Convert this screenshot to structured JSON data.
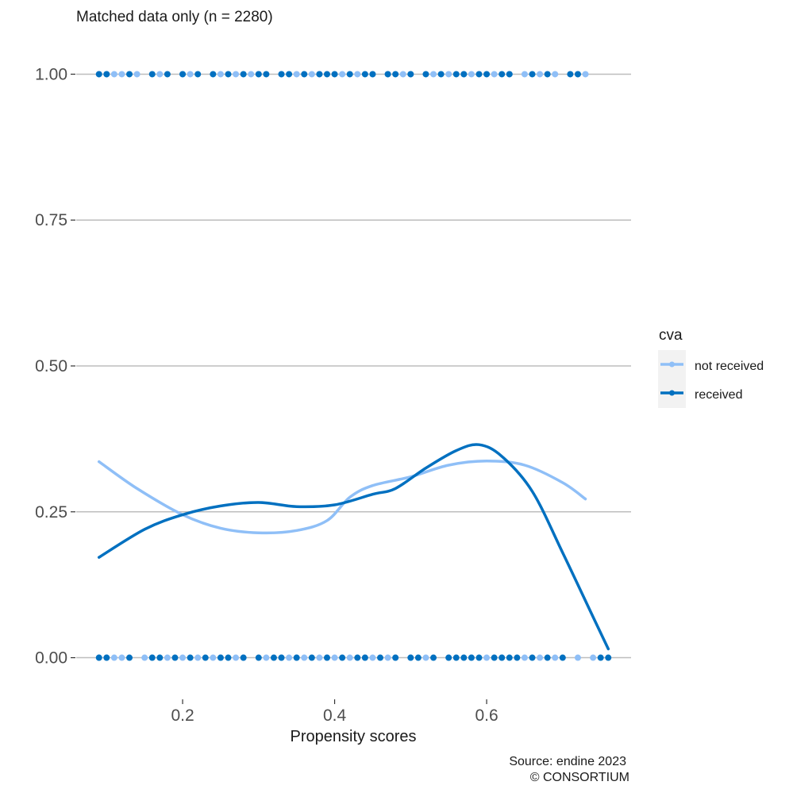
{
  "chart_data": {
    "type": "scatter",
    "title": "Matched data only (n = 2280)",
    "xlabel": "Propensity scores",
    "ylabel": "",
    "xlim": [
      0.06,
      0.79
    ],
    "ylim": [
      -0.07,
      1.07
    ],
    "x_ticks": [
      0.2,
      0.4,
      0.6
    ],
    "x_tick_labels": [
      "0.2",
      "0.4",
      "0.6"
    ],
    "y_ticks": [
      0,
      0.25,
      0.5,
      0.75,
      1
    ],
    "y_tick_labels": [
      "0.00",
      "0.25",
      "0.50",
      "0.75",
      "1.00"
    ],
    "grid": "horizontal major only",
    "legend": {
      "title": "cva",
      "position": "right",
      "entries": [
        "not received",
        "received"
      ]
    },
    "caption": [
      "Source: endine 2023",
      "© CONSORTIUM"
    ],
    "series": [
      {
        "name": "not received",
        "color": "#8fbff7",
        "smooth": {
          "x": [
            0.09,
            0.14,
            0.2,
            0.25,
            0.3,
            0.35,
            0.39,
            0.42,
            0.45,
            0.5,
            0.55,
            0.6,
            0.65,
            0.7,
            0.73
          ],
          "y": [
            0.336,
            0.29,
            0.245,
            0.222,
            0.214,
            0.218,
            0.235,
            0.275,
            0.295,
            0.31,
            0.33,
            0.337,
            0.33,
            0.3,
            0.272
          ]
        },
        "points_y1": [
          0.09,
          0.1,
          0.11,
          0.12,
          0.14,
          0.17,
          0.2,
          0.21,
          0.25,
          0.27,
          0.29,
          0.3,
          0.33,
          0.35,
          0.37,
          0.38,
          0.41,
          0.43,
          0.45,
          0.47,
          0.49,
          0.5,
          0.53,
          0.55,
          0.57,
          0.58,
          0.61,
          0.63,
          0.65,
          0.67,
          0.69,
          0.72,
          0.73
        ],
        "points_y0": [
          0.09,
          0.1,
          0.11,
          0.12,
          0.15,
          0.16,
          0.18,
          0.2,
          0.22,
          0.24,
          0.25,
          0.27,
          0.28,
          0.31,
          0.33,
          0.34,
          0.35,
          0.36,
          0.38,
          0.39,
          0.4,
          0.42,
          0.44,
          0.45,
          0.47,
          0.48,
          0.5,
          0.52,
          0.55,
          0.58,
          0.6,
          0.62,
          0.65,
          0.67,
          0.69,
          0.72,
          0.74
        ]
      },
      {
        "name": "received",
        "color": "#0070c0",
        "smooth": {
          "x": [
            0.09,
            0.15,
            0.2,
            0.25,
            0.3,
            0.35,
            0.4,
            0.45,
            0.48,
            0.52,
            0.56,
            0.59,
            0.62,
            0.66,
            0.7,
            0.74,
            0.76
          ],
          "y": [
            0.172,
            0.22,
            0.245,
            0.26,
            0.266,
            0.259,
            0.262,
            0.28,
            0.29,
            0.325,
            0.355,
            0.365,
            0.345,
            0.285,
            0.18,
            0.07,
            0.015
          ]
        },
        "points_y1": [
          0.09,
          0.1,
          0.13,
          0.16,
          0.18,
          0.2,
          0.22,
          0.24,
          0.26,
          0.28,
          0.3,
          0.31,
          0.33,
          0.34,
          0.36,
          0.38,
          0.39,
          0.4,
          0.42,
          0.44,
          0.45,
          0.47,
          0.48,
          0.5,
          0.52,
          0.54,
          0.56,
          0.57,
          0.59,
          0.6,
          0.62,
          0.63,
          0.66,
          0.68,
          0.71,
          0.72
        ],
        "points_y0": [
          0.09,
          0.1,
          0.13,
          0.16,
          0.17,
          0.19,
          0.21,
          0.23,
          0.25,
          0.26,
          0.28,
          0.3,
          0.32,
          0.33,
          0.35,
          0.37,
          0.39,
          0.41,
          0.43,
          0.44,
          0.46,
          0.48,
          0.5,
          0.51,
          0.53,
          0.55,
          0.56,
          0.57,
          0.58,
          0.59,
          0.61,
          0.62,
          0.63,
          0.64,
          0.66,
          0.68,
          0.7,
          0.75,
          0.76
        ]
      }
    ]
  }
}
